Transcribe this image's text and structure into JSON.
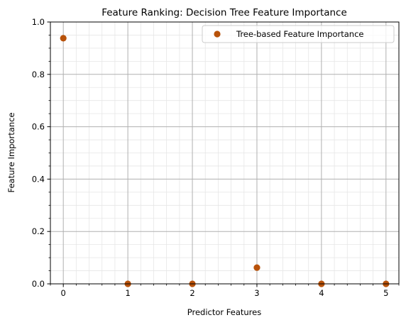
{
  "chart_data": {
    "type": "scatter",
    "title": "Feature Ranking: Decision Tree Feature Importance",
    "xlabel": "Predictor Features",
    "ylabel": "Feature Importance",
    "xlim": [
      -0.2,
      5.2
    ],
    "ylim": [
      0,
      1.0
    ],
    "x_ticks": [
      0,
      1,
      2,
      3,
      4,
      5
    ],
    "x_tick_labels": [
      "0",
      "1",
      "2",
      "3",
      "4",
      "5"
    ],
    "y_ticks": [
      0.0,
      0.2,
      0.4,
      0.6,
      0.8,
      1.0
    ],
    "y_tick_labels": [
      "0.0",
      "0.2",
      "0.4",
      "0.6",
      "0.8",
      "1.0"
    ],
    "x_minor_step": 0.2,
    "y_minor_step": 0.05,
    "grid": true,
    "minor_grid": true,
    "legend_position": "top-right",
    "series": [
      {
        "name": "Tree-based Feature Importance",
        "color": "#b8520a",
        "marker": "circle",
        "x": [
          0,
          1,
          2,
          3,
          4,
          5
        ],
        "y": [
          0.938,
          0.0,
          0.0,
          0.062,
          0.0,
          0.0
        ]
      }
    ]
  }
}
